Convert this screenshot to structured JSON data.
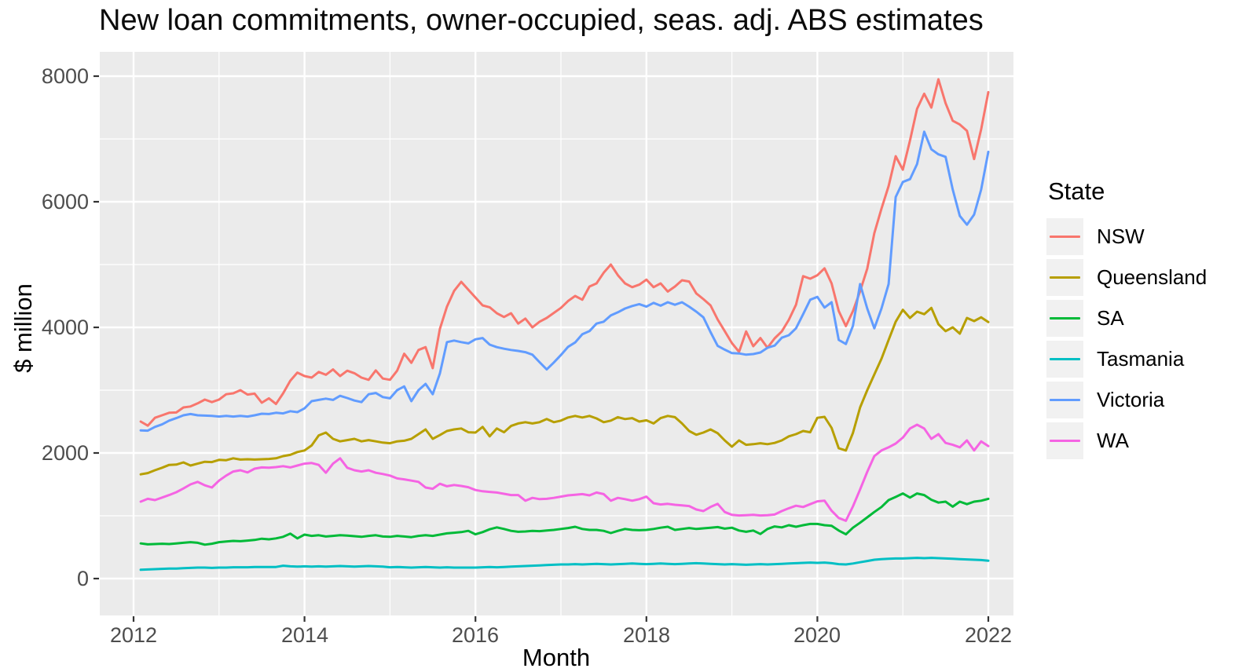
{
  "title": "New loan commitments, owner-occupied, seas. adj. ABS estimates",
  "axes": {
    "x": {
      "label": "Month",
      "tick_labels": [
        "2012",
        "2014",
        "2016",
        "2018",
        "2020",
        "2022"
      ]
    },
    "y": {
      "label": "$ million",
      "tick_labels": [
        "0",
        "2000",
        "4000",
        "6000",
        "8000"
      ]
    }
  },
  "legend": {
    "title": "State",
    "entries": [
      {
        "label": "NSW",
        "color": "#F8766D"
      },
      {
        "label": "Queensland",
        "color": "#B79F00"
      },
      {
        "label": "SA",
        "color": "#00BA38"
      },
      {
        "label": "Tasmania",
        "color": "#00BFC4"
      },
      {
        "label": "Victoria",
        "color": "#619CFF"
      },
      {
        "label": "WA",
        "color": "#F564E3"
      }
    ]
  },
  "style_colors": {
    "panel_background": "#EBEBEB",
    "gridline": "#FFFFFF",
    "tick_mark": "#333333",
    "tick_text": "#4D4D4D",
    "legend_key_fill": "#F1F1F1"
  },
  "chart_data": {
    "type": "line",
    "title": "New loan commitments, owner-occupied, seas. adj. ABS estimates",
    "xlabel": "Month",
    "ylabel": "$ million",
    "x_start": "2012-02",
    "x_frequency": "monthly",
    "x_ticks": [
      2012,
      2014,
      2016,
      2018,
      2020,
      2022
    ],
    "x_minor_ticks": [
      2013,
      2015,
      2017,
      2019,
      2021
    ],
    "y_ticks": [
      0,
      2000,
      4000,
      6000,
      8000
    ],
    "y_minor_ticks": [
      1000,
      3000,
      5000,
      7000
    ],
    "ylim": [
      -590,
      8390
    ],
    "xlim": [
      2011.6,
      2022.3
    ],
    "grid": "white major+minor on grey panel",
    "legend_position": "right",
    "series": [
      {
        "name": "NSW",
        "color": "#F8766D",
        "values": [
          2500,
          2435,
          2560,
          2600,
          2640,
          2645,
          2725,
          2740,
          2790,
          2850,
          2810,
          2850,
          2935,
          2950,
          3000,
          2930,
          2945,
          2800,
          2870,
          2780,
          2950,
          3150,
          3280,
          3225,
          3200,
          3290,
          3245,
          3330,
          3225,
          3310,
          3270,
          3200,
          3165,
          3315,
          3185,
          3165,
          3310,
          3580,
          3435,
          3640,
          3685,
          3350,
          3975,
          4330,
          4580,
          4725,
          4600,
          4475,
          4350,
          4320,
          4225,
          4165,
          4225,
          4060,
          4140,
          4000,
          4090,
          4150,
          4230,
          4310,
          4420,
          4500,
          4440,
          4650,
          4700,
          4870,
          5000,
          4830,
          4700,
          4640,
          4680,
          4760,
          4640,
          4700,
          4570,
          4650,
          4750,
          4730,
          4540,
          4450,
          4350,
          4125,
          3940,
          3750,
          3610,
          3935,
          3700,
          3830,
          3675,
          3825,
          3935,
          4120,
          4360,
          4815,
          4775,
          4830,
          4940,
          4700,
          4260,
          4020,
          4260,
          4575,
          4935,
          5500,
          5890,
          6250,
          6725,
          6510,
          6975,
          7480,
          7720,
          7500,
          7950,
          7570,
          7290,
          7230,
          7130,
          6680,
          7155,
          7745
        ]
      },
      {
        "name": "Queensland",
        "color": "#B79F00",
        "values": [
          1660,
          1680,
          1725,
          1765,
          1810,
          1815,
          1850,
          1800,
          1830,
          1860,
          1855,
          1890,
          1885,
          1915,
          1895,
          1900,
          1895,
          1900,
          1905,
          1915,
          1950,
          1970,
          2015,
          2040,
          2120,
          2280,
          2325,
          2225,
          2185,
          2205,
          2225,
          2185,
          2205,
          2185,
          2165,
          2155,
          2185,
          2195,
          2225,
          2300,
          2375,
          2225,
          2285,
          2350,
          2375,
          2390,
          2330,
          2325,
          2415,
          2265,
          2390,
          2330,
          2430,
          2470,
          2490,
          2470,
          2490,
          2540,
          2490,
          2515,
          2565,
          2590,
          2565,
          2590,
          2550,
          2490,
          2515,
          2570,
          2540,
          2555,
          2500,
          2520,
          2470,
          2555,
          2590,
          2570,
          2470,
          2350,
          2290,
          2325,
          2375,
          2315,
          2200,
          2100,
          2200,
          2130,
          2140,
          2155,
          2140,
          2160,
          2200,
          2265,
          2300,
          2350,
          2330,
          2560,
          2575,
          2400,
          2075,
          2040,
          2320,
          2725,
          3000,
          3250,
          3500,
          3800,
          4090,
          4280,
          4150,
          4250,
          4210,
          4310,
          4050,
          3940,
          4000,
          3900,
          4150,
          4100,
          4160,
          4085
        ]
      },
      {
        "name": "SA",
        "color": "#00BA38",
        "values": [
          560,
          545,
          550,
          555,
          550,
          560,
          570,
          580,
          570,
          540,
          555,
          580,
          590,
          600,
          595,
          605,
          615,
          635,
          625,
          640,
          665,
          715,
          640,
          700,
          680,
          690,
          670,
          680,
          690,
          685,
          675,
          665,
          680,
          690,
          670,
          665,
          680,
          670,
          660,
          680,
          690,
          680,
          700,
          720,
          730,
          740,
          760,
          705,
          740,
          785,
          815,
          790,
          760,
          745,
          750,
          760,
          755,
          765,
          775,
          790,
          805,
          825,
          790,
          775,
          775,
          760,
          725,
          760,
          790,
          775,
          770,
          775,
          790,
          810,
          825,
          775,
          790,
          805,
          790,
          800,
          810,
          820,
          795,
          810,
          765,
          745,
          765,
          710,
          790,
          830,
          815,
          850,
          825,
          850,
          870,
          870,
          850,
          840,
          765,
          705,
          810,
          890,
          975,
          1060,
          1140,
          1250,
          1300,
          1355,
          1290,
          1355,
          1330,
          1255,
          1210,
          1225,
          1145,
          1225,
          1185,
          1225,
          1240,
          1270
        ]
      },
      {
        "name": "Tasmania",
        "color": "#00BFC4",
        "values": [
          140,
          145,
          150,
          155,
          160,
          160,
          165,
          170,
          175,
          175,
          170,
          175,
          175,
          180,
          180,
          180,
          185,
          185,
          185,
          185,
          205,
          195,
          190,
          195,
          190,
          195,
          190,
          195,
          200,
          195,
          190,
          195,
          200,
          195,
          190,
          180,
          185,
          180,
          175,
          180,
          185,
          180,
          175,
          180,
          175,
          175,
          175,
          175,
          180,
          185,
          180,
          185,
          190,
          195,
          200,
          205,
          210,
          215,
          220,
          225,
          225,
          230,
          225,
          230,
          235,
          230,
          225,
          230,
          235,
          240,
          235,
          230,
          235,
          240,
          235,
          230,
          235,
          240,
          245,
          240,
          235,
          230,
          225,
          230,
          225,
          220,
          225,
          230,
          225,
          230,
          235,
          240,
          245,
          250,
          255,
          250,
          255,
          245,
          230,
          225,
          240,
          260,
          280,
          300,
          310,
          315,
          320,
          320,
          325,
          330,
          325,
          330,
          325,
          320,
          315,
          310,
          305,
          300,
          295,
          285
        ]
      },
      {
        "name": "Victoria",
        "color": "#619CFF",
        "values": [
          2360,
          2355,
          2415,
          2455,
          2515,
          2555,
          2600,
          2620,
          2600,
          2595,
          2590,
          2580,
          2590,
          2580,
          2590,
          2580,
          2600,
          2625,
          2620,
          2640,
          2630,
          2665,
          2650,
          2710,
          2825,
          2845,
          2865,
          2845,
          2910,
          2875,
          2835,
          2810,
          2935,
          2955,
          2890,
          2870,
          3000,
          3060,
          2825,
          3000,
          3100,
          2935,
          3265,
          3765,
          3790,
          3765,
          3745,
          3810,
          3830,
          3725,
          3685,
          3660,
          3640,
          3625,
          3605,
          3565,
          3445,
          3330,
          3440,
          3560,
          3690,
          3760,
          3890,
          3940,
          4060,
          4090,
          4190,
          4240,
          4300,
          4340,
          4370,
          4330,
          4390,
          4345,
          4400,
          4360,
          4400,
          4330,
          4250,
          4160,
          3925,
          3705,
          3645,
          3590,
          3585,
          3565,
          3575,
          3600,
          3675,
          3710,
          3835,
          3875,
          3985,
          4210,
          4440,
          4485,
          4315,
          4400,
          3800,
          3735,
          4025,
          4690,
          4300,
          3985,
          4300,
          4690,
          6075,
          6315,
          6360,
          6600,
          7115,
          6835,
          6755,
          6715,
          6195,
          5775,
          5635,
          5795,
          6195,
          6795
        ]
      },
      {
        "name": "WA",
        "color": "#F564E3",
        "values": [
          1225,
          1270,
          1250,
          1290,
          1330,
          1375,
          1435,
          1500,
          1540,
          1485,
          1450,
          1560,
          1640,
          1705,
          1725,
          1690,
          1750,
          1770,
          1765,
          1775,
          1790,
          1770,
          1800,
          1830,
          1840,
          1810,
          1685,
          1830,
          1915,
          1765,
          1725,
          1705,
          1725,
          1685,
          1665,
          1640,
          1595,
          1580,
          1560,
          1540,
          1450,
          1430,
          1510,
          1470,
          1490,
          1475,
          1455,
          1410,
          1390,
          1380,
          1370,
          1350,
          1330,
          1330,
          1240,
          1285,
          1265,
          1270,
          1285,
          1305,
          1325,
          1335,
          1345,
          1325,
          1370,
          1345,
          1240,
          1285,
          1265,
          1240,
          1265,
          1305,
          1200,
          1180,
          1190,
          1175,
          1165,
          1155,
          1100,
          1075,
          1140,
          1190,
          1060,
          1015,
          1005,
          1010,
          1015,
          1005,
          1010,
          1020,
          1075,
          1120,
          1160,
          1140,
          1185,
          1230,
          1240,
          1080,
          965,
          920,
          1150,
          1420,
          1700,
          1950,
          2040,
          2090,
          2150,
          2245,
          2390,
          2450,
          2390,
          2225,
          2300,
          2160,
          2130,
          2090,
          2200,
          2040,
          2185,
          2110
        ]
      }
    ]
  }
}
